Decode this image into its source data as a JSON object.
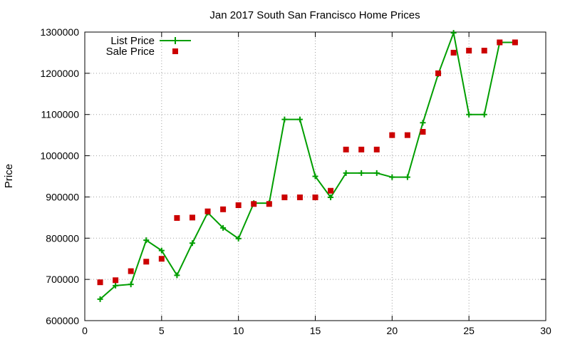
{
  "chart_data": {
    "type": "line",
    "title": "Jan 2017 South San Francisco Home Prices",
    "xlabel": "",
    "ylabel": "Price",
    "xlim": [
      0,
      30
    ],
    "ylim": [
      600000,
      1300000
    ],
    "x_ticks": [
      0,
      5,
      10,
      15,
      20,
      25,
      30
    ],
    "y_ticks": [
      600000,
      700000,
      800000,
      900000,
      1000000,
      1100000,
      1200000,
      1300000
    ],
    "grid": true,
    "legend": "top-left",
    "series": [
      {
        "name": "List Price",
        "style": "line-with-plus-markers",
        "color": "#009e00",
        "x": [
          1,
          2,
          3,
          4,
          5,
          6,
          7,
          8,
          9,
          10,
          11,
          12,
          13,
          14,
          15,
          16,
          17,
          18,
          19,
          20,
          21,
          22,
          23,
          24,
          25,
          26,
          27,
          28
        ],
        "values": [
          652000,
          685000,
          688000,
          795000,
          770000,
          710000,
          788000,
          862000,
          825000,
          799000,
          885000,
          885000,
          1088000,
          1088000,
          950000,
          899000,
          958000,
          958000,
          958000,
          948000,
          948000,
          1080000,
          1198000,
          1298000,
          1100000,
          1100000,
          1275000,
          1275000
        ]
      },
      {
        "name": "Sale Price",
        "style": "square-markers",
        "color": "#cc0000",
        "x": [
          1,
          2,
          3,
          4,
          5,
          6,
          7,
          8,
          9,
          10,
          11,
          12,
          13,
          14,
          15,
          16,
          17,
          18,
          19,
          20,
          21,
          22,
          23,
          24,
          25,
          26,
          27,
          28
        ],
        "values": [
          693000,
          698000,
          720000,
          743000,
          750000,
          849000,
          850000,
          865000,
          870000,
          880000,
          883000,
          883000,
          899000,
          899000,
          899000,
          915000,
          1015000,
          1015000,
          1015000,
          1050000,
          1050000,
          1058000,
          1200000,
          1250000,
          1255000,
          1255000,
          1275000,
          1275000
        ]
      }
    ]
  }
}
